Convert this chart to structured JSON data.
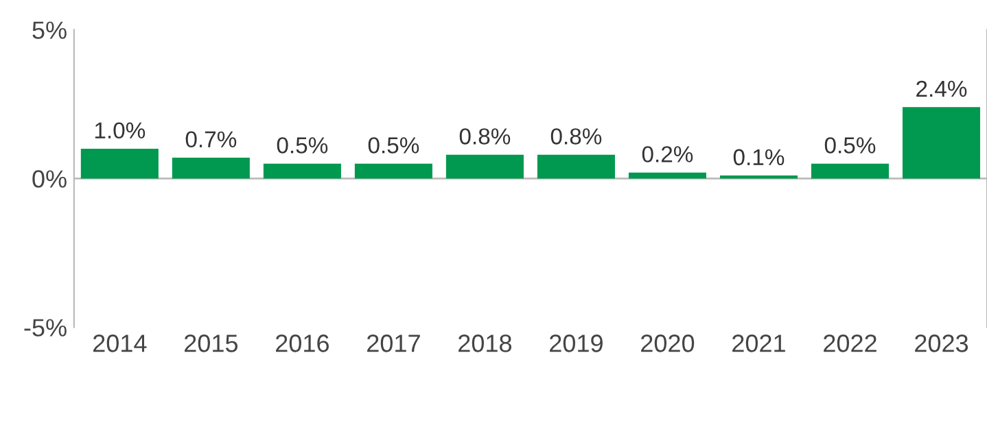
{
  "chart_data": {
    "type": "bar",
    "categories": [
      "2014",
      "2015",
      "2016",
      "2017",
      "2018",
      "2019",
      "2020",
      "2021",
      "2022",
      "2023"
    ],
    "series": [
      {
        "color": "#00994f",
        "values": [
          1.0,
          0.7,
          0.5,
          0.5,
          0.8,
          0.8,
          0.2,
          0.1,
          0.5,
          2.4
        ],
        "value_labels": [
          "1.0%",
          "0.7%",
          "0.5%",
          "0.5%",
          "0.8%",
          "0.8%",
          "0.2%",
          "0.1%",
          "0.5%",
          "2.4%"
        ]
      }
    ],
    "ylim": [
      -5,
      5
    ],
    "yticks": [
      {
        "value": -5,
        "label": "-5%"
      },
      {
        "value": 0,
        "label": "0%"
      },
      {
        "value": 5,
        "label": "5%"
      }
    ],
    "ref_lines": [
      {
        "axis": "y",
        "value": 0,
        "color": "#bbbbbb"
      }
    ]
  }
}
